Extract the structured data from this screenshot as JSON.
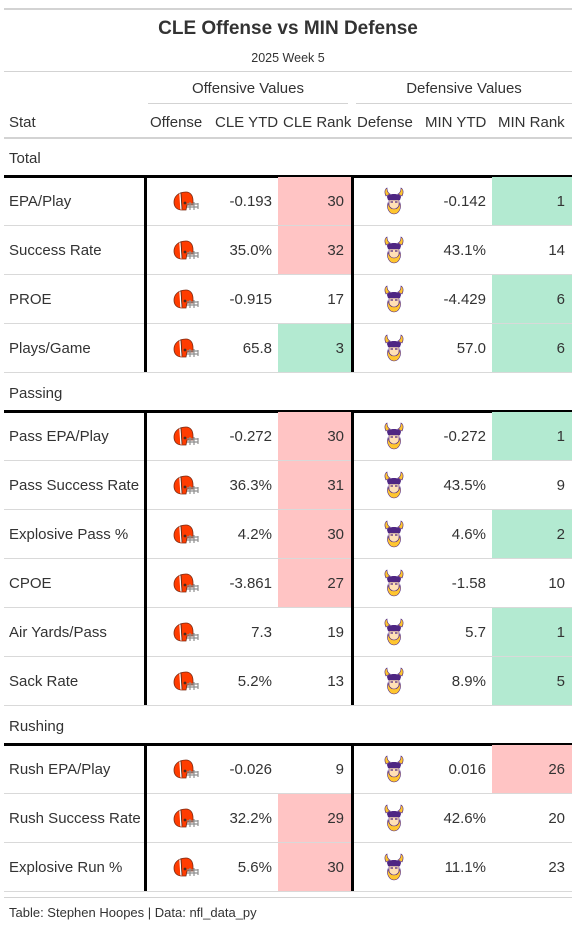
{
  "title": "CLE Offense vs MIN Defense",
  "subtitle": "2025 Week 5",
  "spanners": {
    "offense": "Offensive Values",
    "defense": "Defensive Values"
  },
  "columns": {
    "stat": "Stat",
    "offense": "Offense",
    "off_ytd": "CLE YTD",
    "off_rank": "CLE Rank",
    "defense": "Defense",
    "def_ytd": "MIN YTD",
    "def_rank": "MIN Rank"
  },
  "colors": {
    "bad": "#ffc4c4",
    "good": "#b3ead1",
    "cle_orange": "#ff3c00",
    "min_purple": "#4f2683",
    "min_gold": "#ffc62f"
  },
  "groups": [
    {
      "label": "Total",
      "rows": [
        {
          "stat": "EPA/Play",
          "off_ytd": "-0.193",
          "off_rank": "30",
          "off_hl": "bad",
          "def_ytd": "-0.142",
          "def_rank": "1",
          "def_hl": "good"
        },
        {
          "stat": "Success Rate",
          "off_ytd": "35.0%",
          "off_rank": "32",
          "off_hl": "bad",
          "def_ytd": "43.1%",
          "def_rank": "14",
          "def_hl": ""
        },
        {
          "stat": "PROE",
          "off_ytd": "-0.915",
          "off_rank": "17",
          "off_hl": "",
          "def_ytd": "-4.429",
          "def_rank": "6",
          "def_hl": "good"
        },
        {
          "stat": "Plays/Game",
          "off_ytd": "65.8",
          "off_rank": "3",
          "off_hl": "good",
          "def_ytd": "57.0",
          "def_rank": "6",
          "def_hl": "good"
        }
      ]
    },
    {
      "label": "Passing",
      "rows": [
        {
          "stat": "Pass EPA/Play",
          "off_ytd": "-0.272",
          "off_rank": "30",
          "off_hl": "bad",
          "def_ytd": "-0.272",
          "def_rank": "1",
          "def_hl": "good"
        },
        {
          "stat": "Pass Success Rate",
          "off_ytd": "36.3%",
          "off_rank": "31",
          "off_hl": "bad",
          "def_ytd": "43.5%",
          "def_rank": "9",
          "def_hl": ""
        },
        {
          "stat": "Explosive Pass %",
          "off_ytd": "4.2%",
          "off_rank": "30",
          "off_hl": "bad",
          "def_ytd": "4.6%",
          "def_rank": "2",
          "def_hl": "good"
        },
        {
          "stat": "CPOE",
          "off_ytd": "-3.861",
          "off_rank": "27",
          "off_hl": "bad",
          "def_ytd": "-1.58",
          "def_rank": "10",
          "def_hl": ""
        },
        {
          "stat": "Air Yards/Pass",
          "off_ytd": "7.3",
          "off_rank": "19",
          "off_hl": "",
          "def_ytd": "5.7",
          "def_rank": "1",
          "def_hl": "good"
        },
        {
          "stat": "Sack Rate",
          "off_ytd": "5.2%",
          "off_rank": "13",
          "off_hl": "",
          "def_ytd": "8.9%",
          "def_rank": "5",
          "def_hl": "good"
        }
      ]
    },
    {
      "label": "Rushing",
      "rows": [
        {
          "stat": "Rush EPA/Play",
          "off_ytd": "-0.026",
          "off_rank": "9",
          "off_hl": "",
          "def_ytd": "0.016",
          "def_rank": "26",
          "def_hl": "bad"
        },
        {
          "stat": "Rush Success Rate",
          "off_ytd": "32.2%",
          "off_rank": "29",
          "off_hl": "bad",
          "def_ytd": "42.6%",
          "def_rank": "20",
          "def_hl": ""
        },
        {
          "stat": "Explosive Run %",
          "off_ytd": "5.6%",
          "off_rank": "30",
          "off_hl": "bad",
          "def_ytd": "11.1%",
          "def_rank": "23",
          "def_hl": ""
        }
      ]
    }
  ],
  "icons": {
    "offense": "browns-helmet-icon",
    "defense": "vikings-head-icon"
  },
  "footer": "Table: Stephen Hoopes | Data: nfl_data_py"
}
